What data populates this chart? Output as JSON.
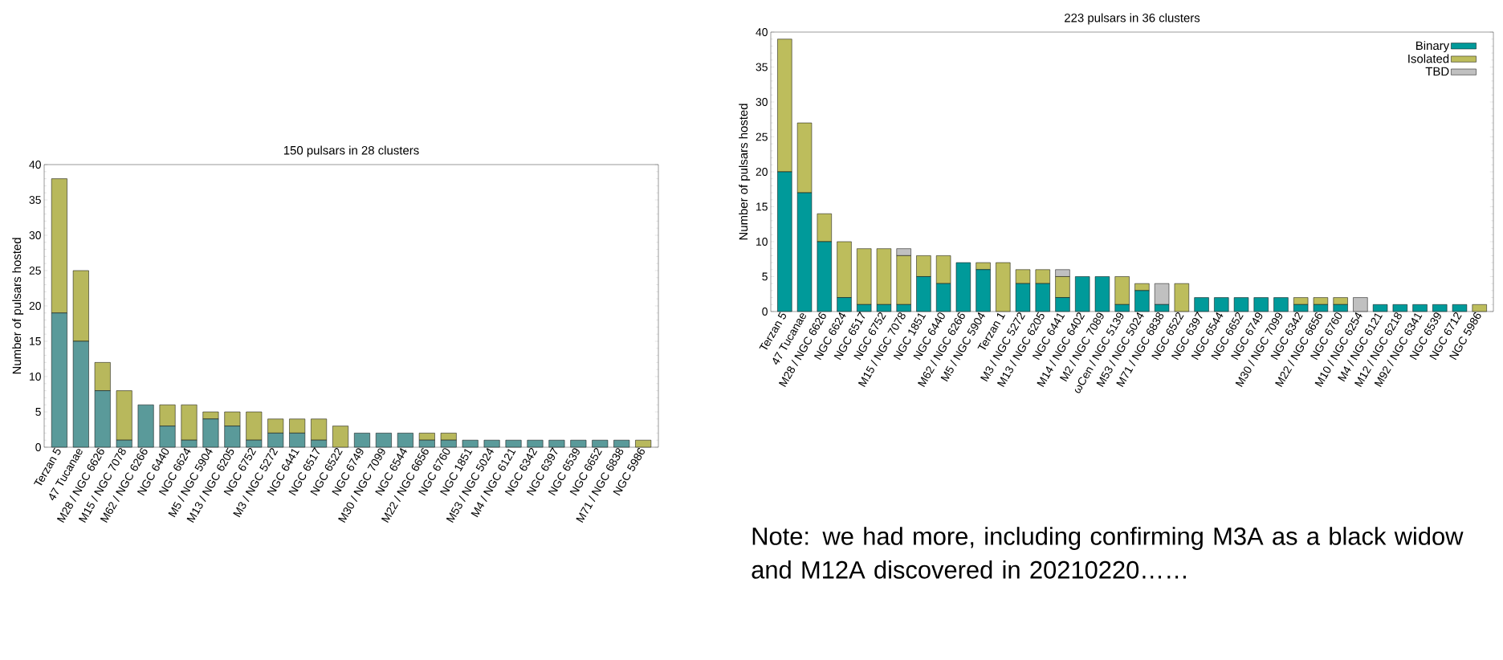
{
  "chart_data": [
    {
      "type": "bar",
      "stacked": true,
      "title": "150 pulsars in 28 clusters",
      "ylabel": "Number of pulsars hosted",
      "categories": [
        "Terzan 5",
        "47 Tucanae",
        "M28 / NGC 6626",
        "M15 / NGC 7078",
        "M62 / NGC 6266",
        "NGC 6440",
        "NGC 6624",
        "M5 / NGC 5904",
        "M13 / NGC 6205",
        "NGC 6752",
        "M3 / NGC 5272",
        "NGC 6441",
        "NGC 6517",
        "NGC 6522",
        "NGC 6749",
        "M30 / NGC 7099",
        "NGC 6544",
        "M22 / NGC 6656",
        "NGC 6760",
        "NGC 1851",
        "M53 / NGC 5024",
        "M4 / NGC 6121",
        "NGC 6342",
        "NGC 6397",
        "NGC 6539",
        "NGC 6652",
        "M71 / NGC 6838",
        "NGC 5986"
      ],
      "series": [
        {
          "color": "#5a9a9a",
          "values": [
            19,
            15,
            8,
            1,
            6,
            3,
            1,
            4,
            3,
            1,
            2,
            2,
            1,
            0,
            2,
            2,
            2,
            1,
            1,
            1,
            1,
            1,
            1,
            1,
            1,
            1,
            1,
            0
          ]
        },
        {
          "color": "#b8b85c",
          "values": [
            19,
            10,
            4,
            7,
            0,
            3,
            5,
            1,
            2,
            4,
            2,
            2,
            3,
            3,
            0,
            0,
            0,
            1,
            1,
            0,
            0,
            0,
            0,
            0,
            0,
            0,
            0,
            1
          ]
        }
      ],
      "ylim": [
        0,
        40
      ],
      "yticks": [
        0,
        5,
        10,
        15,
        20,
        25,
        30,
        35,
        40
      ],
      "grid": false
    },
    {
      "type": "bar",
      "stacked": true,
      "title": "223 pulsars in 36 clusters",
      "ylabel": "Number of pulsars hosted",
      "categories": [
        "Terzan 5",
        "47 Tucanae",
        "M28 / NGC 6626",
        "NGC 6624",
        "NGC 6517",
        "NGC 6752",
        "M15 / NGC 7078",
        "NGC 1851",
        "NGC 6440",
        "M62 / NGC 6266",
        "M5 / NGC 5904",
        "Terzan 1",
        "M3 / NGC 5272",
        "M13 / NGC 6205",
        "NGC 6441",
        "M14 / NGC 6402",
        "M2 / NGC 7089",
        "ωCen / NGC 5139",
        "M53 / NGC 5024",
        "M71 / NGC 6838",
        "NGC 6522",
        "NGC 6397",
        "NGC 6544",
        "NGC 6652",
        "NGC 6749",
        "M30 / NGC 7099",
        "NGC 6342",
        "M22 / NGC 6656",
        "NGC 6760",
        "M10 / NGC 6254",
        "M4 / NGC 6121",
        "M12 / NGC 6218",
        "M92 / NGC 6341",
        "NGC 6539",
        "NGC 6712",
        "NGC 5986"
      ],
      "series": [
        {
          "name": "Binary",
          "color": "#009a9a",
          "values": [
            20,
            17,
            10,
            2,
            1,
            1,
            1,
            5,
            4,
            7,
            6,
            0,
            4,
            4,
            2,
            5,
            5,
            1,
            3,
            1,
            0,
            2,
            2,
            2,
            2,
            2,
            1,
            1,
            1,
            0,
            1,
            1,
            1,
            1,
            1,
            0
          ]
        },
        {
          "name": "Isolated",
          "color": "#bdbd5c",
          "values": [
            19,
            10,
            4,
            8,
            8,
            8,
            7,
            3,
            4,
            0,
            1,
            7,
            2,
            2,
            3,
            0,
            0,
            4,
            1,
            0,
            4,
            0,
            0,
            0,
            0,
            0,
            1,
            1,
            1,
            0,
            0,
            0,
            0,
            0,
            0,
            1
          ]
        },
        {
          "name": "TBD",
          "color": "#c0c0c0",
          "values": [
            0,
            0,
            0,
            0,
            0,
            0,
            1,
            0,
            0,
            0,
            0,
            0,
            0,
            0,
            1,
            0,
            0,
            0,
            0,
            3,
            0,
            0,
            0,
            0,
            0,
            0,
            0,
            0,
            0,
            2,
            0,
            0,
            0,
            0,
            0,
            0
          ]
        }
      ],
      "ylim": [
        0,
        40
      ],
      "yticks": [
        0,
        5,
        10,
        15,
        20,
        25,
        30,
        35,
        40
      ],
      "grid": false,
      "legend": "top right",
      "annotations": [
        "Note: we had more, including confirming M3A as a black widow and M12A discovered in 20210220……"
      ]
    }
  ]
}
